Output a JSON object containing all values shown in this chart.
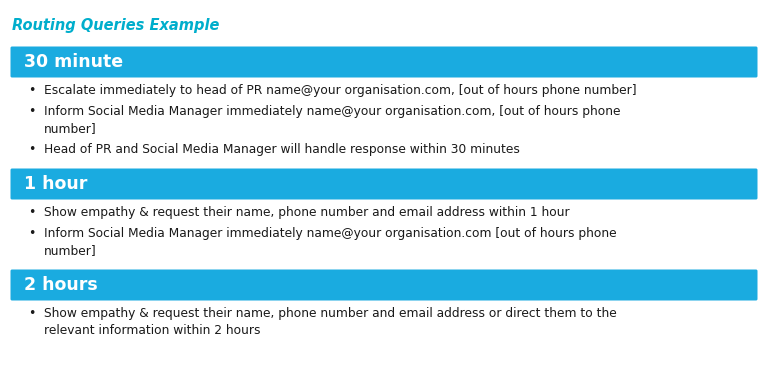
{
  "title": "Routing Queries Example",
  "title_color": "#00AECC",
  "background_color": "#ffffff",
  "header_bg_color": "#1AABE0",
  "header_text_color": "#ffffff",
  "bullet_text_color": "#1a1a1a",
  "fig_width": 7.68,
  "fig_height": 3.67,
  "dpi": 100,
  "sections": [
    {
      "header": "30 minute",
      "bullets": [
        "Escalate immediately to head of PR name@your organisation.com, [out of hours phone number]",
        "Inform Social Media Manager immediately name@your organisation.com, [out of hours phone\nnumber]",
        "Head of PR and Social Media Manager will handle response within 30 minutes"
      ]
    },
    {
      "header": "1 hour",
      "bullets": [
        "Show empathy & request their name, phone number and email address within 1 hour",
        "Inform Social Media Manager immediately name@your organisation.com [out of hours phone\nnumber]"
      ]
    },
    {
      "header": "2 hours",
      "bullets": [
        "Show empathy & request their name, phone number and email address or direct them to the\nrelevant information within 2 hours"
      ]
    }
  ]
}
